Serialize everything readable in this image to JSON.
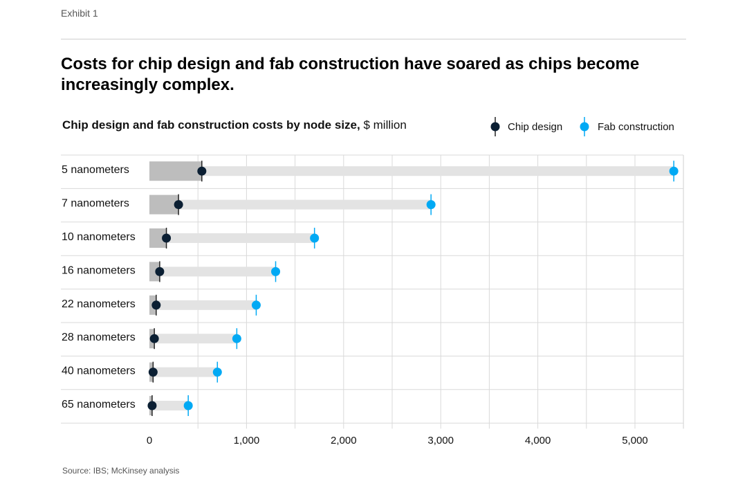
{
  "header": {
    "exhibit": "Exhibit 1",
    "title": "Costs for chip design and fab construction have soared as chips become increasingly complex."
  },
  "subtitle": {
    "bold": "Chip design and fab construction costs by node size,",
    "unit": " $ million"
  },
  "source": "Source: IBS; McKinsey analysis",
  "colors": {
    "chip_design": "#0b1f33",
    "fab_construction": "#00a9f4",
    "bar_dark": "#bdbdbd",
    "bar_light": "#e3e3e3",
    "grid": "#d9d9d9"
  },
  "chart_data": {
    "type": "dot-range",
    "title": "Chip design and fab construction costs by node size, $ million",
    "categories": [
      "5 nanometers",
      "7 nanometers",
      "10 nanometers",
      "16 nanometers",
      "22 nanometers",
      "28 nanometers",
      "40 nanometers",
      "65 nanometers"
    ],
    "series": [
      {
        "name": "Chip design",
        "values": [
          540,
          300,
          175,
          106,
          70,
          51,
          38,
          28
        ]
      },
      {
        "name": "Fab construction",
        "values": [
          5400,
          2900,
          1700,
          1300,
          1100,
          900,
          700,
          400
        ]
      }
    ],
    "xlim": [
      0,
      5500
    ],
    "xticks": [
      0,
      1000,
      2000,
      3000,
      4000,
      5000
    ],
    "xtick_labels": [
      "0",
      "1,000",
      "2,000",
      "3,000",
      "4,000",
      "5,000"
    ],
    "legend": [
      "Chip design",
      "Fab construction"
    ],
    "legend_position": "top-right",
    "grid": true
  }
}
